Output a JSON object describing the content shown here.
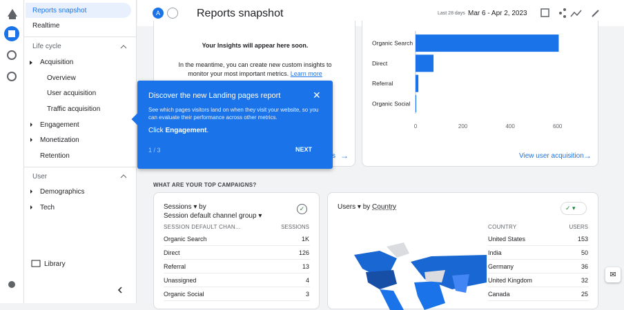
{
  "nav": {
    "items": [
      "Reports snapshot",
      "Realtime",
      "Life cycle",
      "Acquisition",
      "Overview",
      "User acquisition",
      "Traffic acquisition",
      "Engagement",
      "Monetization",
      "Retention",
      "User",
      "Demographics",
      "Tech",
      "Library"
    ]
  },
  "header": {
    "avatar": "A",
    "title": "Reports snapshot",
    "date_label": "Last 28 days",
    "date_range": "Mar 6 - Apr 2, 2023"
  },
  "insights": {
    "title": "Your Insights will appear here soon.",
    "body": "In the meantime, you can create new custom insights to monitor your most important metrics.",
    "link": "Learn more",
    "fragment": "s"
  },
  "tooltip": {
    "title": "Discover the new Landing pages report",
    "body": "See which pages visitors land on when they visit your website, so you can evaluate their performance across other metrics.",
    "click": "Click",
    "target": "Engagement",
    "end": ".",
    "step": "1 / 3",
    "next": "NEXT"
  },
  "chart_data": {
    "type": "bar",
    "orientation": "horizontal",
    "categories": [
      "Organic Search",
      "Direct",
      "Referral",
      "Organic Social"
    ],
    "values": [
      605,
      76,
      12,
      3
    ],
    "color": "#1a73e8",
    "xlim": [
      0,
      700
    ],
    "xticks": [
      0,
      200,
      400,
      600
    ],
    "grid": false,
    "link": "View user acquisition"
  },
  "section": {
    "title": "WHAT ARE YOUR TOP CAMPAIGNS?"
  },
  "sessions": {
    "metric": "Sessions",
    "by": "by",
    "dimension": "Session default channel group",
    "columns": [
      "SESSION DEFAULT CHAN...",
      "SESSIONS"
    ],
    "rows": [
      [
        "Organic Search",
        "1K"
      ],
      [
        "Direct",
        126
      ],
      [
        "Referral",
        13
      ],
      [
        "Unassigned",
        4
      ],
      [
        "Organic Social",
        3
      ]
    ]
  },
  "countries": {
    "metric": "Users",
    "by": "by",
    "dimension": "Country",
    "columns": [
      "COUNTRY",
      "USERS"
    ],
    "rows": [
      [
        "United States",
        153
      ],
      [
        "India",
        50
      ],
      [
        "Germany",
        36
      ],
      [
        "United Kingdom",
        32
      ],
      [
        "Canada",
        25
      ]
    ]
  }
}
